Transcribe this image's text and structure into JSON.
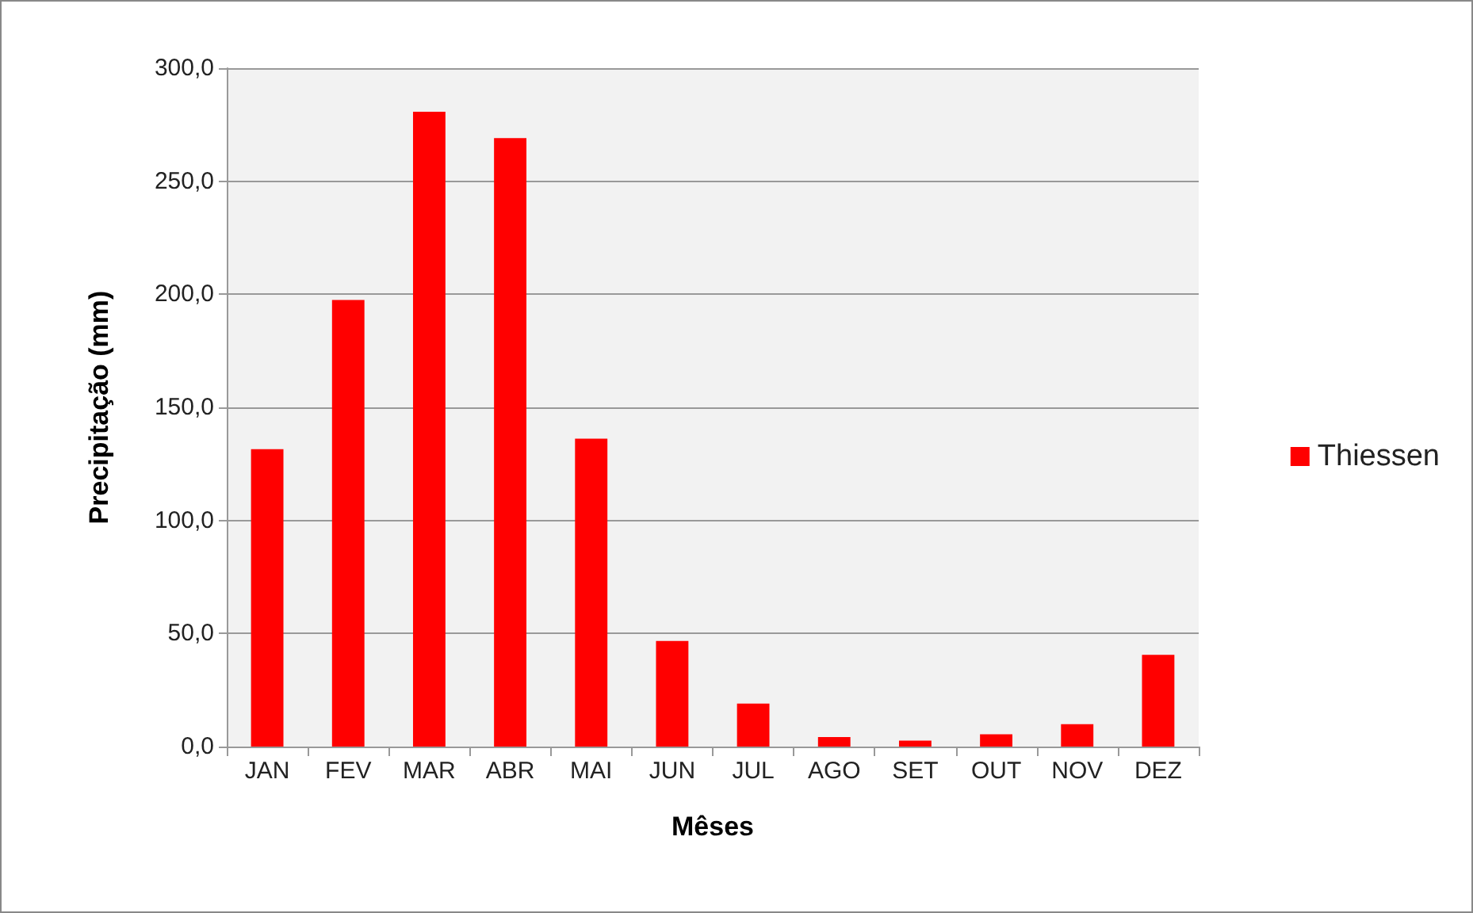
{
  "chart_data": {
    "type": "bar",
    "xlabel": "Mêses",
    "ylabel": "Precipitação (mm)",
    "categories": [
      "JAN",
      "FEV",
      "MAR",
      "ABR",
      "MAI",
      "JUN",
      "JUL",
      "AGO",
      "SET",
      "OUT",
      "NOV",
      "DEZ"
    ],
    "series": [
      {
        "name": "Thiessen",
        "color": "#ff0000",
        "values": [
          131.5,
          197.5,
          280.7,
          269.1,
          136.2,
          46.7,
          19.0,
          4.2,
          2.6,
          5.4,
          9.9,
          40.6
        ]
      }
    ],
    "ylim": [
      0,
      300
    ],
    "yticks": [
      {
        "value": 0,
        "label": "0,0"
      },
      {
        "value": 50,
        "label": "50,0"
      },
      {
        "value": 100,
        "label": "100,0"
      },
      {
        "value": 150,
        "label": "150,0"
      },
      {
        "value": 200,
        "label": "200,0"
      },
      {
        "value": 250,
        "label": "250,0"
      },
      {
        "value": 300,
        "label": "300,0"
      }
    ],
    "grid": "y",
    "legend": "right"
  }
}
